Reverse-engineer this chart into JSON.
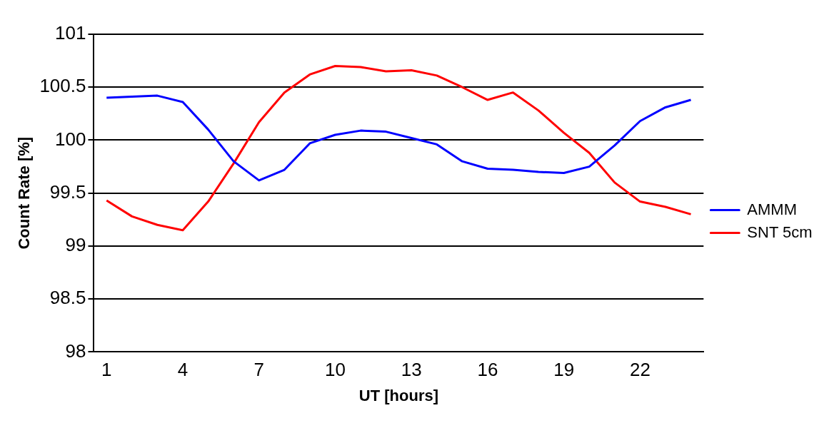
{
  "chart_data": {
    "type": "line",
    "xlabel": "UT [hours]",
    "ylabel": "Count Rate [%]",
    "categories": [
      "1",
      null,
      null,
      "4",
      null,
      null,
      "7",
      null,
      null,
      "10",
      null,
      null,
      "13",
      null,
      null,
      "16",
      null,
      null,
      "19",
      null,
      null,
      "22",
      null,
      null
    ],
    "series": [
      {
        "name": "AMMM",
        "color": "#0000ff",
        "values": [
          100.4,
          100.41,
          100.42,
          100.36,
          100.1,
          99.8,
          99.62,
          99.72,
          99.97,
          100.05,
          100.09,
          100.08,
          100.02,
          99.96,
          99.8,
          99.73,
          99.72,
          99.7,
          99.69,
          99.75,
          99.95,
          100.18,
          100.31,
          100.38
        ]
      },
      {
        "name": "SNT 5cm",
        "color": "#ff0000",
        "values": [
          99.43,
          99.28,
          99.2,
          99.15,
          99.42,
          99.78,
          100.17,
          100.45,
          100.62,
          100.7,
          100.69,
          100.65,
          100.66,
          100.61,
          100.5,
          100.38,
          100.45,
          100.28,
          100.07,
          99.88,
          99.6,
          99.42,
          99.37,
          99.3
        ]
      }
    ],
    "ylim": [
      98,
      101
    ],
    "yticks": [
      98,
      98.5,
      99,
      99.5,
      100,
      100.5,
      101
    ],
    "grid": "y",
    "legend": "right",
    "marker": "none",
    "line_style": "solid"
  }
}
